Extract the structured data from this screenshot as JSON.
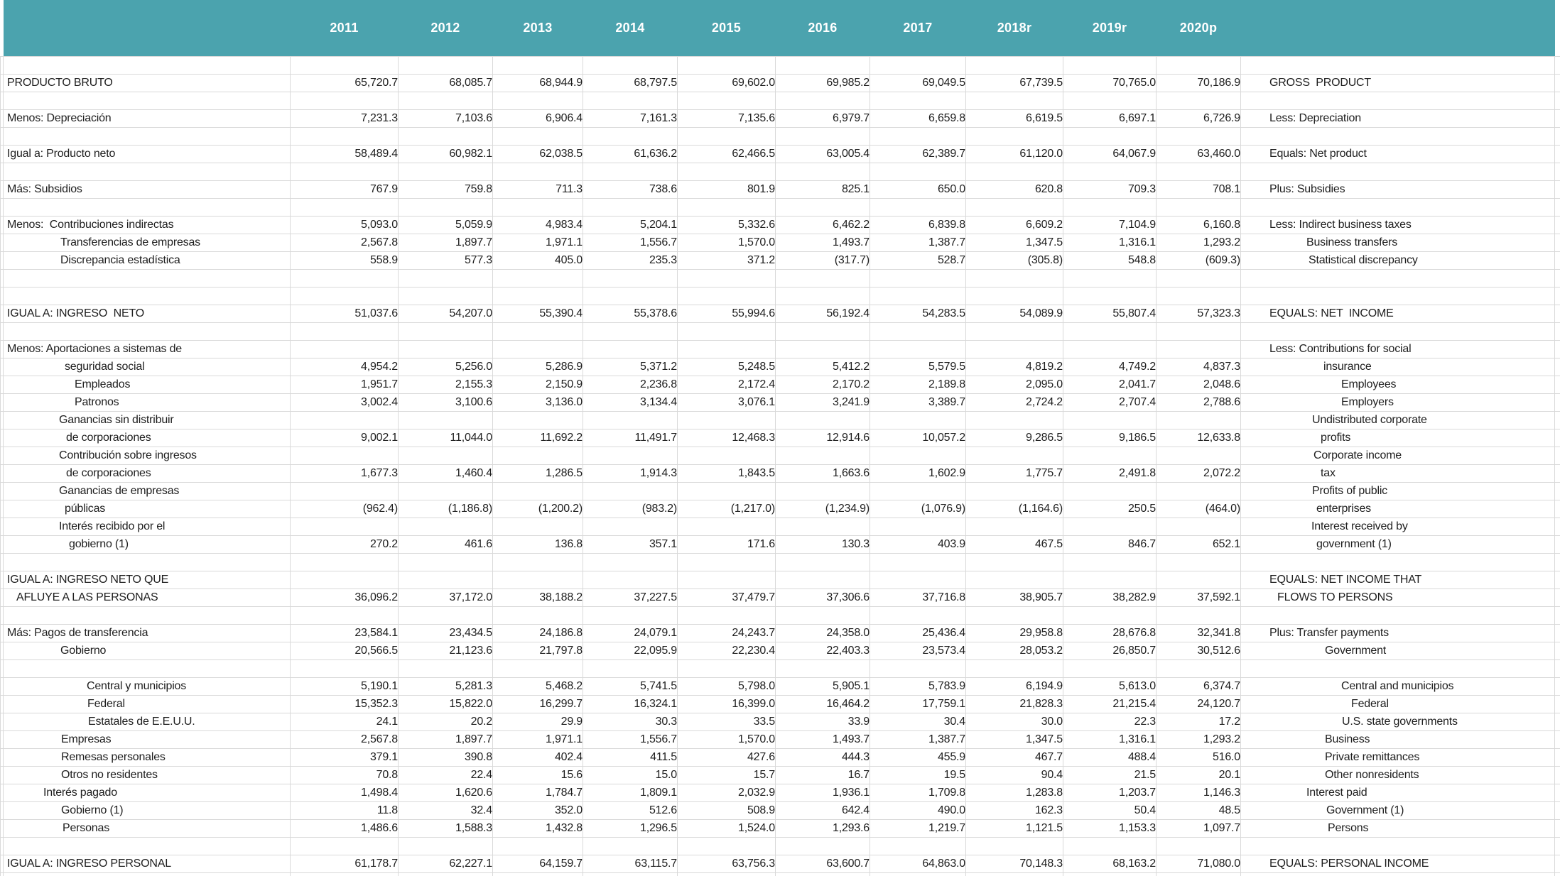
{
  "header": {
    "years": [
      "2011",
      "2012",
      "2013",
      "2014",
      "2015",
      "2016",
      "2017",
      "2018r",
      "2019r",
      "2020p"
    ],
    "header_bg": "#4ba3ae",
    "grid_color": "#d9d9d9"
  },
  "rows": [
    {
      "type": "blank"
    },
    {
      "type": "data",
      "es": "PRODUCTO BRUTO",
      "es_pad": 5,
      "en": "GROSS  PRODUCT",
      "en_pad": 40,
      "values": [
        "65,720.7",
        "68,085.7",
        "68,944.9",
        "68,797.5",
        "69,602.0",
        "69,985.2",
        "69,049.5",
        "67,739.5",
        "70,765.0",
        "70,186.9"
      ]
    },
    {
      "type": "blank"
    },
    {
      "type": "data",
      "es": "Menos: Depreciación",
      "es_pad": 5,
      "en": "Less: Depreciation",
      "en_pad": 40,
      "values": [
        "7,231.3",
        "7,103.6",
        "6,906.4",
        "7,161.3",
        "7,135.6",
        "6,979.7",
        "6,659.8",
        "6,619.5",
        "6,697.1",
        "6,726.9"
      ]
    },
    {
      "type": "blank"
    },
    {
      "type": "data",
      "es": "Igual a: Producto neto",
      "es_pad": 5,
      "en": "Equals: Net product",
      "en_pad": 40,
      "values": [
        "58,489.4",
        "60,982.1",
        "62,038.5",
        "61,636.2",
        "62,466.5",
        "63,005.4",
        "62,389.7",
        "61,120.0",
        "64,067.9",
        "63,460.0"
      ]
    },
    {
      "type": "blank"
    },
    {
      "type": "data",
      "es": "Más: Subsidios",
      "es_pad": 5,
      "en": "Plus: Subsidies",
      "en_pad": 40,
      "values": [
        "767.9",
        "759.8",
        "711.3",
        "738.6",
        "801.9",
        "825.1",
        "650.0",
        "620.8",
        "709.3",
        "708.1"
      ]
    },
    {
      "type": "blank"
    },
    {
      "type": "data",
      "es": "Menos:  Contribuciones indirectas",
      "es_pad": 5,
      "en": "Less: Indirect business taxes",
      "en_pad": 40,
      "values": [
        "5,093.0",
        "5,059.9",
        "4,983.4",
        "5,204.1",
        "5,332.6",
        "6,462.2",
        "6,839.8",
        "6,609.2",
        "7,104.9",
        "6,160.8"
      ]
    },
    {
      "type": "data",
      "es": "Transferencias de empresas",
      "es_pad": 80,
      "en": "Business transfers",
      "en_pad": 92,
      "values": [
        "2,567.8",
        "1,897.7",
        "1,971.1",
        "1,556.7",
        "1,570.0",
        "1,493.7",
        "1,387.7",
        "1,347.5",
        "1,316.1",
        "1,293.2"
      ]
    },
    {
      "type": "data",
      "es": "Discrepancia estadística",
      "es_pad": 80,
      "en": "Statistical discrepancy",
      "en_pad": 95,
      "values": [
        "558.9",
        "577.3",
        "405.0",
        "235.3",
        "371.2",
        "(317.7)",
        "528.7",
        "(305.8)",
        "548.8",
        "(609.3)"
      ]
    },
    {
      "type": "blank"
    },
    {
      "type": "blank"
    },
    {
      "type": "data",
      "es": "IGUAL A: INGRESO  NETO",
      "es_pad": 5,
      "en": "EQUALS: NET  INCOME",
      "en_pad": 40,
      "values": [
        "51,037.6",
        "54,207.0",
        "55,390.4",
        "55,378.6",
        "55,994.6",
        "56,192.4",
        "54,283.5",
        "54,089.9",
        "55,807.4",
        "57,323.3"
      ]
    },
    {
      "type": "blank"
    },
    {
      "type": "data",
      "es": "Menos: Aportaciones a sistemas de",
      "es_pad": 5,
      "en": "Less: Contributions for social",
      "en_pad": 40,
      "values": [
        "",
        "",
        "",
        "",
        "",
        "",
        "",
        "",
        "",
        ""
      ]
    },
    {
      "type": "data",
      "es": "seguridad social",
      "es_pad": 86,
      "en": "insurance",
      "en_pad": 116,
      "values": [
        "4,954.2",
        "5,256.0",
        "5,286.9",
        "5,371.2",
        "5,248.5",
        "5,412.2",
        "5,579.5",
        "4,819.2",
        "4,749.2",
        "4,837.3"
      ]
    },
    {
      "type": "data",
      "es": "Empleados",
      "es_pad": 100,
      "en": "Employees",
      "en_pad": 141,
      "values": [
        "1,951.7",
        "2,155.3",
        "2,150.9",
        "2,236.8",
        "2,172.4",
        "2,170.2",
        "2,189.8",
        "2,095.0",
        "2,041.7",
        "2,048.6"
      ]
    },
    {
      "type": "data",
      "es": "Patronos",
      "es_pad": 100,
      "en": "Employers",
      "en_pad": 141,
      "values": [
        "3,002.4",
        "3,100.6",
        "3,136.0",
        "3,134.4",
        "3,076.1",
        "3,241.9",
        "3,389.7",
        "2,724.2",
        "2,707.4",
        "2,788.6"
      ]
    },
    {
      "type": "data",
      "es": "Ganancias sin distribuir",
      "es_pad": 78,
      "en": "Undistributed corporate",
      "en_pad": 100,
      "values": [
        "",
        "",
        "",
        "",
        "",
        "",
        "",
        "",
        "",
        ""
      ]
    },
    {
      "type": "data",
      "es": "de corporaciones",
      "es_pad": 88,
      "en": "profits",
      "en_pad": 112,
      "values": [
        "9,002.1",
        "11,044.0",
        "11,692.2",
        "11,491.7",
        "12,468.3",
        "12,914.6",
        "10,057.2",
        "9,286.5",
        "9,186.5",
        "12,633.8"
      ]
    },
    {
      "type": "data",
      "es": "Contribución sobre ingresos",
      "es_pad": 78,
      "en": "Corporate income",
      "en_pad": 102,
      "values": [
        "",
        "",
        "",
        "",
        "",
        "",
        "",
        "",
        "",
        ""
      ]
    },
    {
      "type": "data",
      "es": "de corporaciones",
      "es_pad": 88,
      "en": "tax",
      "en_pad": 112,
      "values": [
        "1,677.3",
        "1,460.4",
        "1,286.5",
        "1,914.3",
        "1,843.5",
        "1,663.6",
        "1,602.9",
        "1,775.7",
        "2,491.8",
        "2,072.2"
      ]
    },
    {
      "type": "data",
      "es": "Ganancias de empresas",
      "es_pad": 78,
      "en": "Profits of public",
      "en_pad": 100,
      "values": [
        "",
        "",
        "",
        "",
        "",
        "",
        "",
        "",
        "",
        ""
      ]
    },
    {
      "type": "data",
      "es": "públicas",
      "es_pad": 86,
      "en": "enterprises",
      "en_pad": 106,
      "values": [
        "(962.4)",
        "(1,186.8)",
        "(1,200.2)",
        "(983.2)",
        "(1,217.0)",
        "(1,234.9)",
        "(1,076.9)",
        "(1,164.6)",
        "250.5",
        "(464.0)"
      ]
    },
    {
      "type": "data",
      "es": "Interés recibido por el",
      "es_pad": 78,
      "en": "Interest received by",
      "en_pad": 99,
      "values": [
        "",
        "",
        "",
        "",
        "",
        "",
        "",
        "",
        "",
        ""
      ]
    },
    {
      "type": "data",
      "es": "gobierno (1)",
      "es_pad": 92,
      "en": "government (1)",
      "en_pad": 106,
      "values": [
        "270.2",
        "461.6",
        "136.8",
        "357.1",
        "171.6",
        "130.3",
        "403.9",
        "467.5",
        "846.7",
        "652.1"
      ]
    },
    {
      "type": "blank"
    },
    {
      "type": "data",
      "es": "IGUAL A: INGRESO NETO QUE",
      "es_pad": 5,
      "en": "EQUALS: NET INCOME THAT",
      "en_pad": 40,
      "values": [
        "",
        "",
        "",
        "",
        "",
        "",
        "",
        "",
        "",
        ""
      ]
    },
    {
      "type": "data",
      "es": "AFLUYE A LAS PERSONAS",
      "es_pad": 18,
      "en": "FLOWS TO PERSONS",
      "en_pad": 51,
      "values": [
        "36,096.2",
        "37,172.0",
        "38,188.2",
        "37,227.5",
        "37,479.7",
        "37,306.6",
        "37,716.8",
        "38,905.7",
        "38,282.9",
        "37,592.1"
      ]
    },
    {
      "type": "blank"
    },
    {
      "type": "data",
      "es": "Más: Pagos de transferencia",
      "es_pad": 5,
      "en": "Plus: Transfer payments",
      "en_pad": 40,
      "values": [
        "23,584.1",
        "23,434.5",
        "24,186.8",
        "24,079.1",
        "24,243.7",
        "24,358.0",
        "25,436.4",
        "29,958.8",
        "28,676.8",
        "32,341.8"
      ]
    },
    {
      "type": "data",
      "es": "Gobierno",
      "es_pad": 80,
      "en": "Government",
      "en_pad": 118,
      "values": [
        "20,566.5",
        "21,123.6",
        "21,797.8",
        "22,095.9",
        "22,230.4",
        "22,403.3",
        "23,573.4",
        "28,053.2",
        "26,850.7",
        "30,512.6"
      ]
    },
    {
      "type": "blank"
    },
    {
      "type": "data",
      "es": "Central y municipios",
      "es_pad": 117,
      "en": "Central and municipios",
      "en_pad": 141,
      "values": [
        "5,190.1",
        "5,281.3",
        "5,468.2",
        "5,741.5",
        "5,798.0",
        "5,905.1",
        "5,783.9",
        "6,194.9",
        "5,613.0",
        "6,374.7"
      ]
    },
    {
      "type": "data",
      "es": "Federal",
      "es_pad": 118,
      "en": "Federal",
      "en_pad": 155,
      "values": [
        "15,352.3",
        "15,822.0",
        "16,299.7",
        "16,324.1",
        "16,399.0",
        "16,464.2",
        "17,759.1",
        "21,828.3",
        "21,215.4",
        "24,120.7"
      ]
    },
    {
      "type": "data",
      "es": "Estatales de E.E.U.U.",
      "es_pad": 119,
      "en": "U.S. state governments",
      "en_pad": 142,
      "values": [
        "24.1",
        "20.2",
        "29.9",
        "30.3",
        "33.5",
        "33.9",
        "30.4",
        "30.0",
        "22.3",
        "17.2"
      ]
    },
    {
      "type": "data",
      "es": "Empresas",
      "es_pad": 81,
      "en": "Business",
      "en_pad": 118,
      "values": [
        "2,567.8",
        "1,897.7",
        "1,971.1",
        "1,556.7",
        "1,570.0",
        "1,493.7",
        "1,387.7",
        "1,347.5",
        "1,316.1",
        "1,293.2"
      ]
    },
    {
      "type": "data",
      "es": "Remesas personales",
      "es_pad": 81,
      "en": "Private remittances",
      "en_pad": 118,
      "values": [
        "379.1",
        "390.8",
        "402.4",
        "411.5",
        "427.6",
        "444.3",
        "455.9",
        "467.7",
        "488.4",
        "516.0"
      ]
    },
    {
      "type": "data",
      "es": "Otros no residentes",
      "es_pad": 81,
      "en": "Other nonresidents",
      "en_pad": 118,
      "values": [
        "70.8",
        "22.4",
        "15.6",
        "15.0",
        "15.7",
        "16.7",
        "19.5",
        "90.4",
        "21.5",
        "20.1"
      ]
    },
    {
      "type": "data",
      "es": "Interés pagado",
      "es_pad": 56,
      "en": "Interest paid",
      "en_pad": 92,
      "values": [
        "1,498.4",
        "1,620.6",
        "1,784.7",
        "1,809.1",
        "2,032.9",
        "1,936.1",
        "1,709.8",
        "1,283.8",
        "1,203.7",
        "1,146.3"
      ]
    },
    {
      "type": "data",
      "es": "Gobierno (1)",
      "es_pad": 81,
      "en": "Government (1)",
      "en_pad": 120,
      "values": [
        "11.8",
        "32.4",
        "352.0",
        "512.6",
        "508.9",
        "642.4",
        "490.0",
        "162.3",
        "50.4",
        "48.5"
      ]
    },
    {
      "type": "data",
      "es": "Personas",
      "es_pad": 83,
      "en": "Persons",
      "en_pad": 122,
      "values": [
        "1,486.6",
        "1,588.3",
        "1,432.8",
        "1,296.5",
        "1,524.0",
        "1,293.6",
        "1,219.7",
        "1,121.5",
        "1,153.3",
        "1,097.7"
      ]
    },
    {
      "type": "blank"
    },
    {
      "type": "data",
      "es": "IGUAL A: INGRESO PERSONAL",
      "es_pad": 5,
      "en": "EQUALS: PERSONAL INCOME",
      "en_pad": 40,
      "values": [
        "61,178.7",
        "62,227.1",
        "64,159.7",
        "63,115.7",
        "63,756.3",
        "63,600.7",
        "64,863.0",
        "70,148.3",
        "68,163.2",
        "71,080.0"
      ]
    },
    {
      "type": "blank"
    }
  ]
}
